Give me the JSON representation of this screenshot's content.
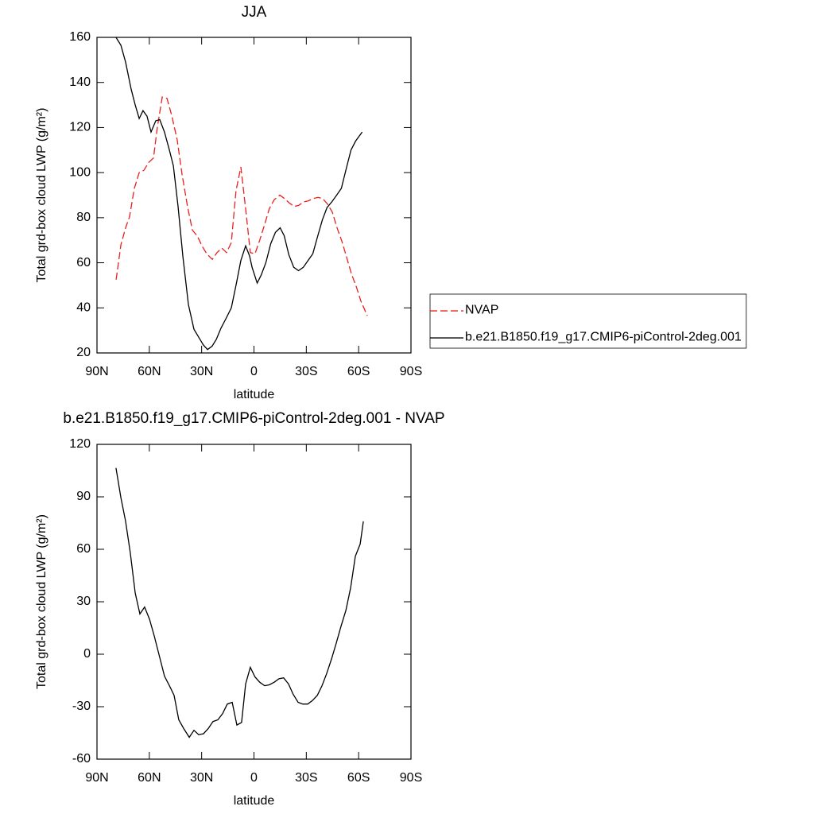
{
  "chart_data": [
    {
      "type": "line",
      "title": "JJA",
      "xlabel": "latitude",
      "ylabel": "Total grd-box cloud LWP (g/m²)",
      "xlim": [
        90,
        -90
      ],
      "xticks": [
        {
          "value": 90,
          "label": "90N"
        },
        {
          "value": 60,
          "label": "60N"
        },
        {
          "value": 30,
          "label": "30N"
        },
        0,
        {
          "value": -30,
          "label": "30S"
        },
        {
          "value": -60,
          "label": "60S"
        },
        {
          "value": -90,
          "label": "90S"
        }
      ],
      "ylim": [
        20,
        160
      ],
      "yticks": [
        20,
        40,
        60,
        80,
        100,
        120,
        140,
        160
      ],
      "legend": "right",
      "series": [
        {
          "name": "NVAP",
          "color": "#e8201c",
          "dash": "dashed",
          "x": [
            79,
            76.3,
            73.6,
            71.3,
            68.6,
            65.8,
            63.1,
            60.4,
            57.6,
            55.4,
            52.6,
            49.9,
            47.2,
            44,
            41.2,
            38.1,
            35.3,
            32.6,
            29.8,
            27.1,
            23.9,
            21.2,
            18.4,
            15.7,
            13,
            10.3,
            7.5,
            4.8,
            2.1,
            -0.6,
            -3.3,
            -6.1,
            -8.8,
            -11.6,
            -14.8,
            -17.5,
            -20.3,
            -23,
            -25.7,
            -28.5,
            -31.2,
            -33.9,
            -36.7,
            -39.4,
            -42.2,
            -44.9,
            -47.6,
            -50.4,
            -53.1,
            -55.9,
            -58.6,
            -61.3,
            -65
          ],
          "values": [
            52.5,
            68,
            75.5,
            80.5,
            93,
            100,
            101,
            104.5,
            106.5,
            120,
            133.5,
            133,
            125.5,
            114.5,
            99,
            85,
            74.5,
            72,
            67.5,
            64,
            61.5,
            64.5,
            66.5,
            64.5,
            69,
            92,
            102.5,
            84,
            64.5,
            64,
            70,
            77,
            84,
            88,
            90,
            88.5,
            86.5,
            85,
            85.5,
            87,
            87.5,
            88.5,
            89,
            88.5,
            86,
            82.5,
            75.5,
            69.5,
            62.5,
            55,
            49.5,
            43,
            36.5
          ]
        },
        {
          "name": "b.e21.B1850.f19_g17.CMIP6-piControl-2deg.001",
          "color": "#000000",
          "dash": "solid",
          "x": [
            79.1,
            76.3,
            73.6,
            70.4,
            68.1,
            65.8,
            63.6,
            61.3,
            59,
            56.3,
            54,
            51.3,
            48.5,
            46.2,
            43.5,
            40.8,
            37.6,
            34.4,
            31.7,
            29,
            26.6,
            24,
            21.6,
            18.9,
            16.2,
            13,
            10.3,
            7.5,
            4.8,
            2.5,
            1.1,
            -1.8,
            -4.1,
            -6.8,
            -9.6,
            -12.3,
            -15,
            -17.3,
            -20,
            -22.8,
            -25.5,
            -28.3,
            -31,
            -33.7,
            -36.4,
            -39.2,
            -41.9,
            -44.6,
            -47.4,
            -50.1,
            -52.8,
            -55.6,
            -58.3,
            -62
          ],
          "values": [
            160,
            156.5,
            149,
            137,
            130,
            124,
            127.5,
            125,
            118,
            123,
            123.5,
            118,
            110,
            103,
            85,
            63,
            41.5,
            30.5,
            27,
            23.5,
            21.5,
            23,
            26,
            31,
            35,
            40,
            50,
            61,
            67.5,
            63,
            58,
            51,
            54.5,
            60,
            68.5,
            73.5,
            75.5,
            72,
            63.5,
            58,
            56.5,
            58,
            61,
            64,
            71.5,
            79,
            84.5,
            87,
            90,
            93,
            101.5,
            110,
            114,
            118
          ]
        }
      ]
    },
    {
      "type": "line",
      "title": "b.e21.B1850.f19_g17.CMIP6-piControl-2deg.001 - NVAP",
      "xlabel": "latitude",
      "ylabel": "Total grd-box cloud LWP (g/m²)",
      "xlim": [
        90,
        -90
      ],
      "xticks": [
        {
          "value": 90,
          "label": "90N"
        },
        {
          "value": 60,
          "label": "60N"
        },
        {
          "value": 30,
          "label": "30N"
        },
        0,
        {
          "value": -30,
          "label": "30S"
        },
        {
          "value": -60,
          "label": "60S"
        },
        {
          "value": -90,
          "label": "90S"
        }
      ],
      "ylim": [
        -60,
        120
      ],
      "yticks": [
        -60,
        -30,
        0,
        30,
        60,
        90,
        120
      ],
      "series": [
        {
          "color": "#000000",
          "dash": "solid",
          "x": [
            79.1,
            76.3,
            73.6,
            70.9,
            68.1,
            65.4,
            62.7,
            59.9,
            57.2,
            54.5,
            51.3,
            48.5,
            45.8,
            43.1,
            40.3,
            37.1,
            34.4,
            31.7,
            29,
            26.2,
            23.5,
            20.7,
            18,
            15.3,
            12.5,
            9.8,
            7.1,
            4.8,
            2.1,
            -0.6,
            -3.3,
            -6.1,
            -8.8,
            -11.6,
            -14.3,
            -17,
            -19.8,
            -22.5,
            -25.3,
            -28,
            -30.8,
            -33.5,
            -36.3,
            -39,
            -41.7,
            -44.5,
            -47.2,
            -49.9,
            -52.7,
            -55.4,
            -58.1,
            -60.9,
            -62.7
          ],
          "values": [
            106.5,
            89.5,
            76,
            58,
            35,
            23,
            27,
            20,
            10.5,
            0,
            -12.5,
            -18,
            -23.5,
            -37.5,
            -42.5,
            -47.5,
            -43.5,
            -46,
            -45.5,
            -42.5,
            -38.5,
            -37.5,
            -34,
            -28.5,
            -27.5,
            -40.5,
            -39,
            -17,
            -7.5,
            -13,
            -16,
            -18,
            -17.5,
            -16,
            -14,
            -13.5,
            -17,
            -23,
            -27.5,
            -28.5,
            -28.5,
            -26.5,
            -23.5,
            -18,
            -11,
            -2.5,
            6.5,
            16,
            25,
            38,
            56,
            63,
            76
          ]
        }
      ]
    }
  ]
}
